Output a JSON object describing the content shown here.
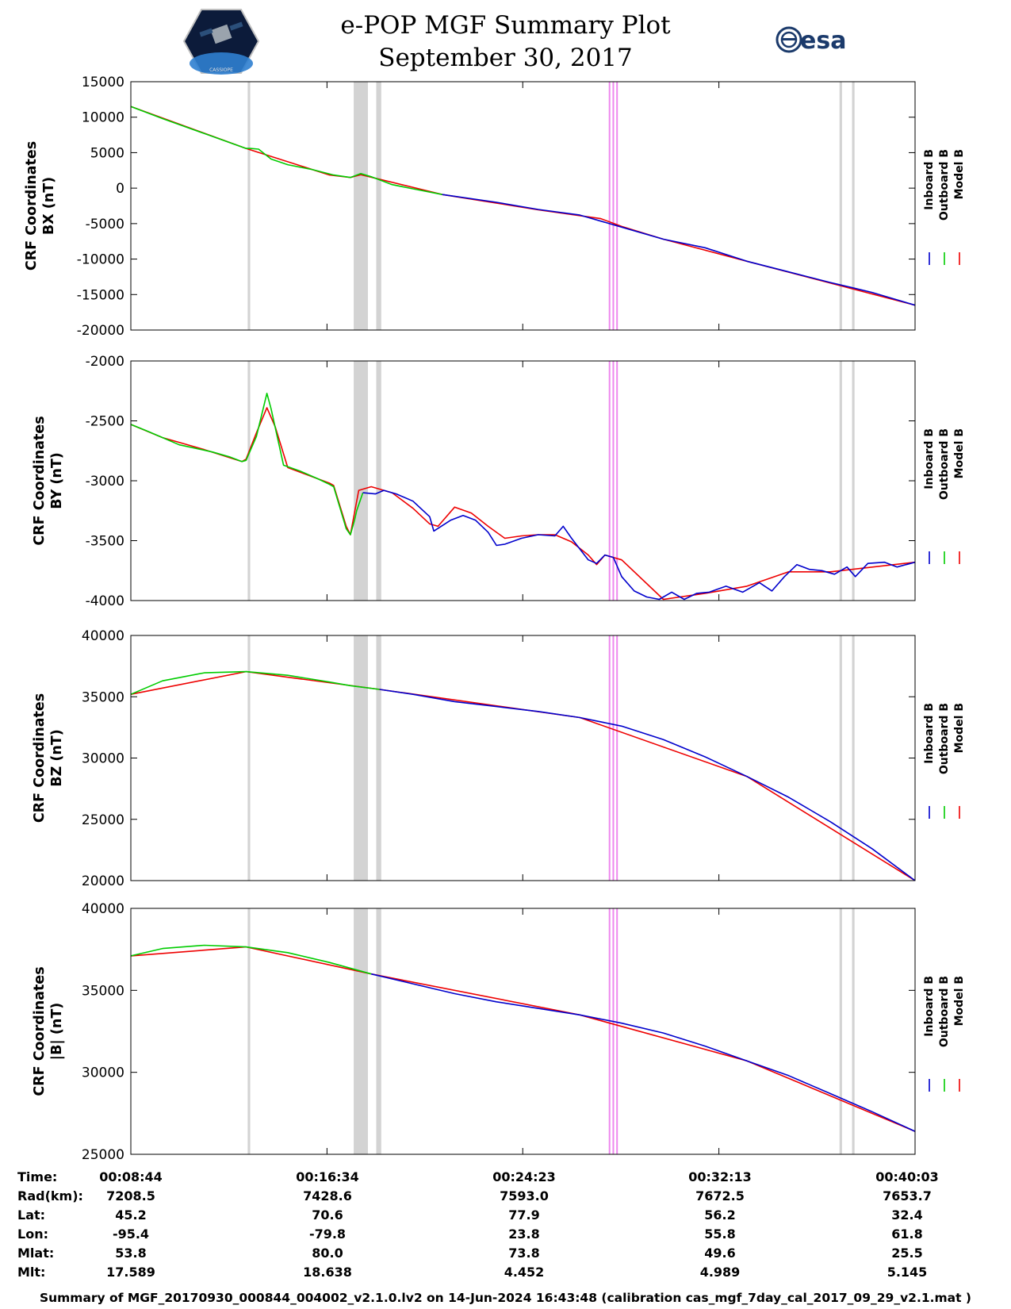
{
  "header": {
    "title": "e-POP MGF Summary Plot",
    "date": "September 30, 2017",
    "left_logo_text": "CASSIOPE",
    "right_logo_text": "esa"
  },
  "legend": [
    "Inboard B",
    "Outboard B",
    "Model B"
  ],
  "colors": {
    "inboard": "#0000cc",
    "outboard": "#00cc00",
    "model": "#ee0000",
    "gap": "#d3d3d3",
    "marker": "#ee88ee"
  },
  "chart_data": [
    {
      "type": "line",
      "title": "",
      "ylabel": [
        "CRF Coordinates",
        "BX (nT)"
      ],
      "ylim": [
        -20000,
        15000
      ],
      "yticks": [
        15000,
        10000,
        5000,
        0,
        -5000,
        -10000,
        -15000,
        -20000
      ],
      "xlim": [
        524,
        2403
      ],
      "series": [
        {
          "name": "Outboard B",
          "x": [
            524,
            600,
            700,
            800,
            810,
            830,
            860,
            900,
            960,
            1010,
            1050,
            1075,
            1100,
            1150,
            1200,
            1270
          ],
          "values": [
            11500,
            9800,
            7700,
            5600,
            5600,
            5500,
            4100,
            3300,
            2600,
            1850,
            1500,
            2050,
            1600,
            500,
            -100,
            -900
          ]
        },
        {
          "name": "Inboard B",
          "x": [
            1270,
            1400,
            1500,
            1600,
            1700,
            1800,
            1900,
            2000,
            2100,
            2200,
            2250,
            2300,
            2403
          ],
          "values": [
            -900,
            -2000,
            -3000,
            -3800,
            -5500,
            -7200,
            -8400,
            -10300,
            -11800,
            -13300,
            -14000,
            -14700,
            -16500
          ]
        },
        {
          "name": "Model B",
          "x": [
            524,
            800,
            1000,
            1050,
            1075,
            1270,
            1500,
            1650,
            1700,
            1800,
            2000,
            2403
          ],
          "values": [
            11500,
            5600,
            1850,
            1500,
            1900,
            -900,
            -3050,
            -4300,
            -5400,
            -7200,
            -10300,
            -16500
          ]
        }
      ]
    },
    {
      "type": "line",
      "title": "",
      "ylabel": [
        "CRF Coordinates",
        "BY (nT)"
      ],
      "ylim": [
        -4000,
        -2000
      ],
      "yticks": [
        -2000,
        -2500,
        -3000,
        -3500,
        -4000
      ],
      "xlim": [
        524,
        2403
      ],
      "series": [
        {
          "name": "Outboard B",
          "x": [
            524,
            560,
            600,
            640,
            680,
            720,
            760,
            790,
            800,
            825,
            850,
            860,
            890,
            930,
            970,
            1000,
            1010,
            1040,
            1050,
            1060,
            1065,
            1080
          ],
          "values": [
            -2530,
            -2580,
            -2640,
            -2700,
            -2730,
            -2760,
            -2800,
            -2840,
            -2830,
            -2630,
            -2270,
            -2400,
            -2870,
            -2920,
            -2980,
            -3030,
            -3050,
            -3400,
            -3450,
            -3330,
            -3250,
            -3100
          ]
        },
        {
          "name": "Inboard B",
          "x": [
            1080,
            1110,
            1130,
            1160,
            1200,
            1240,
            1250,
            1290,
            1320,
            1350,
            1380,
            1400,
            1420,
            1460,
            1500,
            1540,
            1560,
            1580,
            1600,
            1620,
            1640,
            1660,
            1680,
            1700,
            1730,
            1760,
            1790,
            1820,
            1850,
            1880,
            1910,
            1950,
            1990,
            2030,
            2060,
            2090,
            2120,
            2150,
            2180,
            2210,
            2240,
            2260,
            2290,
            2330,
            2360,
            2403
          ],
          "values": [
            -3100,
            -3110,
            -3080,
            -3110,
            -3170,
            -3300,
            -3420,
            -3330,
            -3290,
            -3330,
            -3430,
            -3540,
            -3530,
            -3480,
            -3450,
            -3460,
            -3380,
            -3480,
            -3570,
            -3660,
            -3690,
            -3620,
            -3640,
            -3800,
            -3920,
            -3970,
            -3990,
            -3930,
            -3990,
            -3940,
            -3930,
            -3880,
            -3930,
            -3850,
            -3920,
            -3800,
            -3700,
            -3740,
            -3750,
            -3780,
            -3720,
            -3800,
            -3690,
            -3680,
            -3720,
            -3680
          ]
        },
        {
          "name": "Model B",
          "x": [
            524,
            600,
            700,
            790,
            800,
            825,
            850,
            870,
            900,
            1000,
            1010,
            1040,
            1050,
            1070,
            1100,
            1150,
            1200,
            1240,
            1260,
            1300,
            1340,
            1380,
            1420,
            1460,
            1500,
            1540,
            1580,
            1620,
            1640,
            1660,
            1700,
            1800,
            1900,
            2000,
            2100,
            2200,
            2403
          ],
          "values": [
            -2530,
            -2640,
            -2740,
            -2840,
            -2820,
            -2600,
            -2390,
            -2550,
            -2890,
            -3020,
            -3040,
            -3380,
            -3450,
            -3080,
            -3050,
            -3100,
            -3230,
            -3360,
            -3380,
            -3220,
            -3270,
            -3380,
            -3480,
            -3460,
            -3450,
            -3450,
            -3510,
            -3620,
            -3700,
            -3620,
            -3660,
            -3990,
            -3940,
            -3880,
            -3760,
            -3760,
            -3680
          ]
        }
      ]
    },
    {
      "type": "line",
      "title": "",
      "ylabel": [
        "CRF Coordinates",
        "BZ (nT)"
      ],
      "ylim": [
        20000,
        40000
      ],
      "yticks": [
        40000,
        35000,
        30000,
        25000,
        20000
      ],
      "xlim": [
        524,
        2403
      ],
      "series": [
        {
          "name": "Outboard B",
          "x": [
            524,
            600,
            700,
            800,
            900,
            1000,
            1050,
            1120
          ],
          "values": [
            35200,
            36300,
            36950,
            37050,
            36750,
            36200,
            35900,
            35600
          ]
        },
        {
          "name": "Inboard B",
          "x": [
            1120,
            1200,
            1300,
            1400,
            1500,
            1600,
            1700,
            1800,
            1900,
            2000,
            2100,
            2200,
            2300,
            2403
          ],
          "values": [
            35600,
            35200,
            34600,
            34200,
            33800,
            33300,
            32600,
            31500,
            30100,
            28500,
            26800,
            24800,
            22600,
            20000
          ]
        },
        {
          "name": "Model B",
          "x": [
            524,
            800,
            1120,
            1600,
            2000,
            2403
          ],
          "values": [
            35200,
            37050,
            35600,
            33300,
            28500,
            20000
          ]
        }
      ]
    },
    {
      "type": "line",
      "title": "",
      "ylabel": [
        "CRF Coordinates",
        "|B| (nT)"
      ],
      "ylim": [
        25000,
        40000
      ],
      "yticks": [
        40000,
        35000,
        30000,
        25000
      ],
      "xlim": [
        524,
        2403
      ],
      "series": [
        {
          "name": "Outboard B",
          "x": [
            524,
            600,
            700,
            800,
            900,
            1000,
            1100
          ],
          "values": [
            37100,
            37550,
            37750,
            37650,
            37300,
            36700,
            36000
          ]
        },
        {
          "name": "Inboard B",
          "x": [
            1100,
            1200,
            1300,
            1400,
            1500,
            1600,
            1700,
            1800,
            1900,
            2000,
            2100,
            2200,
            2300,
            2403
          ],
          "values": [
            36000,
            35400,
            34800,
            34300,
            33900,
            33500,
            33000,
            32400,
            31600,
            30700,
            29800,
            28700,
            27600,
            26400
          ]
        },
        {
          "name": "Model B",
          "x": [
            524,
            800,
            1100,
            1600,
            2000,
            2403
          ],
          "values": [
            37100,
            37650,
            36000,
            33500,
            30700,
            26400
          ]
        }
      ]
    }
  ],
  "shaded_intervals": [
    [
      804,
      810
    ],
    [
      1058,
      1092
    ],
    [
      1112,
      1124
    ],
    [
      2222,
      2228
    ],
    [
      2252,
      2258
    ]
  ],
  "marker_lines": [
    1671,
    1680,
    1689
  ],
  "xticks": [
    524,
    994,
    1463,
    1933,
    2403
  ],
  "info_table": {
    "labels": [
      "Time:",
      "Rad(km):",
      "Lat:",
      "Lon:",
      "Mlat:",
      "Mlt:"
    ],
    "columns": [
      [
        "00:08:44",
        "7208.5",
        "45.2",
        "-95.4",
        "53.8",
        "17.589"
      ],
      [
        "00:16:34",
        "7428.6",
        "70.6",
        "-79.8",
        "80.0",
        "18.638"
      ],
      [
        "00:24:23",
        "7593.0",
        "77.9",
        "23.8",
        "73.8",
        "4.452"
      ],
      [
        "00:32:13",
        "7672.5",
        "56.2",
        "55.8",
        "49.6",
        "4.989"
      ],
      [
        "00:40:03",
        "7653.7",
        "32.4",
        "61.8",
        "25.5",
        "5.145"
      ]
    ]
  },
  "footer": "Summary of MGF_20170930_000844_004002_v2.1.0.lv2 on 14-Jun-2024 16:43:48 (calibration cas_mgf_7day_cal_2017_09_29_v2.1.mat )"
}
